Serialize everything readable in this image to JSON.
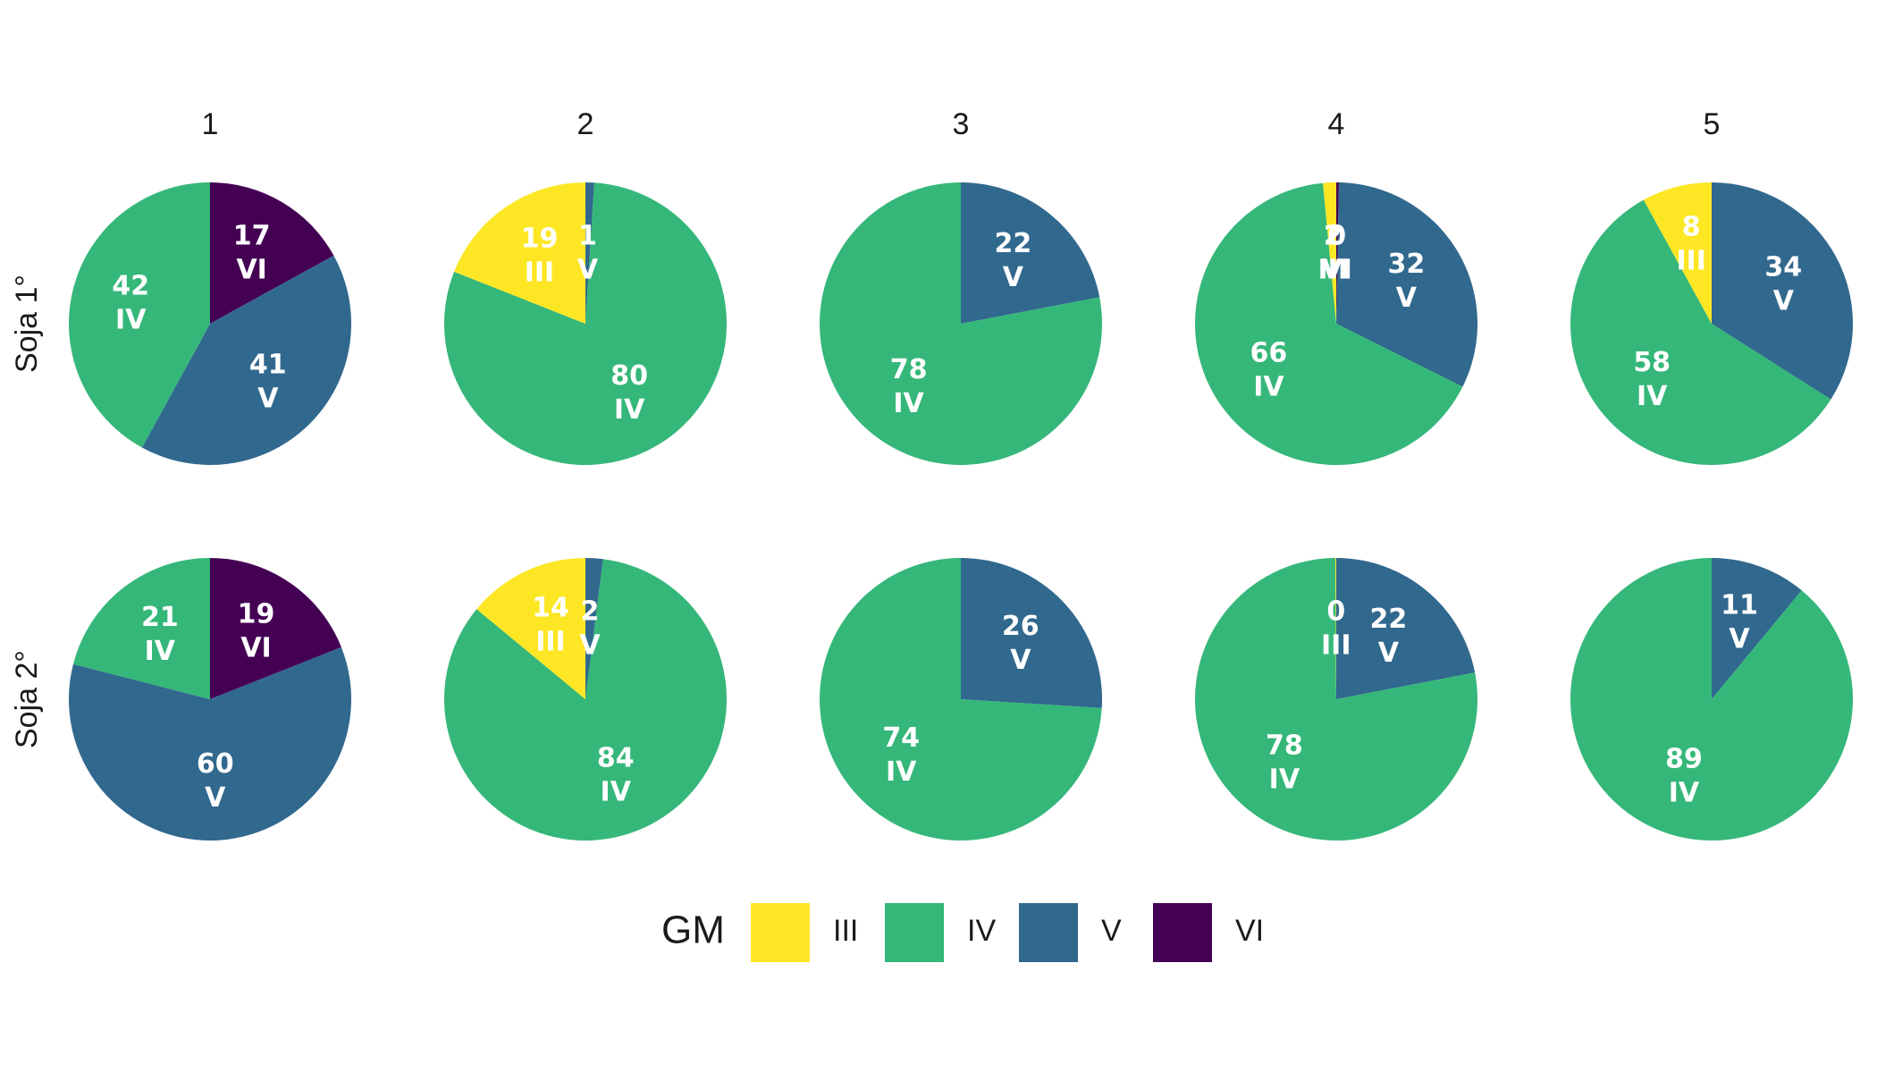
{
  "chart_data": {
    "type": "pie",
    "facet_columns": [
      "1",
      "2",
      "3",
      "4",
      "5"
    ],
    "facet_rows": [
      "Soja 1°",
      "Soja 2°"
    ],
    "legend": {
      "title": "GM",
      "position": "bottom",
      "categories": [
        "III",
        "IV",
        "V",
        "VI"
      ],
      "colors": {
        "III": "#FDE725",
        "IV": "#35B779",
        "V": "#31688E",
        "VI": "#440154"
      }
    },
    "panels": [
      {
        "row": "Soja 1°",
        "col": "1",
        "slices": [
          {
            "category": "VI",
            "value": 17,
            "label": "17",
            "cat_label": "VI"
          },
          {
            "category": "V",
            "value": 41,
            "label": "41",
            "cat_label": "V"
          },
          {
            "category": "IV",
            "value": 42,
            "label": "42",
            "cat_label": "IV"
          }
        ]
      },
      {
        "row": "Soja 1°",
        "col": "2",
        "slices": [
          {
            "category": "V",
            "value": 1,
            "label": "1",
            "cat_label": "V"
          },
          {
            "category": "IV",
            "value": 80,
            "label": "80",
            "cat_label": "IV"
          },
          {
            "category": "III",
            "value": 19,
            "label": "19",
            "cat_label": "III"
          }
        ]
      },
      {
        "row": "Soja 1°",
        "col": "3",
        "slices": [
          {
            "category": "V",
            "value": 22,
            "label": "22",
            "cat_label": "V"
          },
          {
            "category": "IV",
            "value": 78,
            "label": "78",
            "cat_label": "IV"
          }
        ]
      },
      {
        "row": "Soja 1°",
        "col": "4",
        "slices": [
          {
            "category": "VI",
            "value": 0.3,
            "label": "0",
            "cat_label": "VI"
          },
          {
            "category": "V",
            "value": 32,
            "label": "32",
            "cat_label": "V"
          },
          {
            "category": "IV",
            "value": 66,
            "label": "66",
            "cat_label": "IV"
          },
          {
            "category": "III",
            "value": 1.5,
            "label": "2",
            "cat_label": "III"
          }
        ]
      },
      {
        "row": "Soja 1°",
        "col": "5",
        "slices": [
          {
            "category": "V",
            "value": 34,
            "label": "34",
            "cat_label": "V"
          },
          {
            "category": "IV",
            "value": 58,
            "label": "58",
            "cat_label": "IV"
          },
          {
            "category": "III",
            "value": 8,
            "label": "8",
            "cat_label": "III"
          }
        ]
      },
      {
        "row": "Soja 2°",
        "col": "1",
        "slices": [
          {
            "category": "VI",
            "value": 19,
            "label": "19",
            "cat_label": "VI"
          },
          {
            "category": "V",
            "value": 60,
            "label": "60",
            "cat_label": "V"
          },
          {
            "category": "IV",
            "value": 21,
            "label": "21",
            "cat_label": "IV"
          }
        ]
      },
      {
        "row": "Soja 2°",
        "col": "2",
        "slices": [
          {
            "category": "V",
            "value": 2,
            "label": "2",
            "cat_label": "V"
          },
          {
            "category": "IV",
            "value": 84,
            "label": "84",
            "cat_label": "IV"
          },
          {
            "category": "III",
            "value": 14,
            "label": "14",
            "cat_label": "III"
          }
        ]
      },
      {
        "row": "Soja 2°",
        "col": "3",
        "slices": [
          {
            "category": "V",
            "value": 26,
            "label": "26",
            "cat_label": "V"
          },
          {
            "category": "IV",
            "value": 74,
            "label": "74",
            "cat_label": "IV"
          }
        ]
      },
      {
        "row": "Soja 2°",
        "col": "4",
        "slices": [
          {
            "category": "V",
            "value": 22,
            "label": "22",
            "cat_label": "V"
          },
          {
            "category": "IV",
            "value": 78,
            "label": "78",
            "cat_label": "IV"
          },
          {
            "category": "III",
            "value": 0.1,
            "label": "0",
            "cat_label": "III"
          }
        ]
      },
      {
        "row": "Soja 2°",
        "col": "5",
        "slices": [
          {
            "category": "V",
            "value": 11,
            "label": "11",
            "cat_label": "V"
          },
          {
            "category": "IV",
            "value": 89,
            "label": "89",
            "cat_label": "IV"
          }
        ]
      }
    ]
  }
}
